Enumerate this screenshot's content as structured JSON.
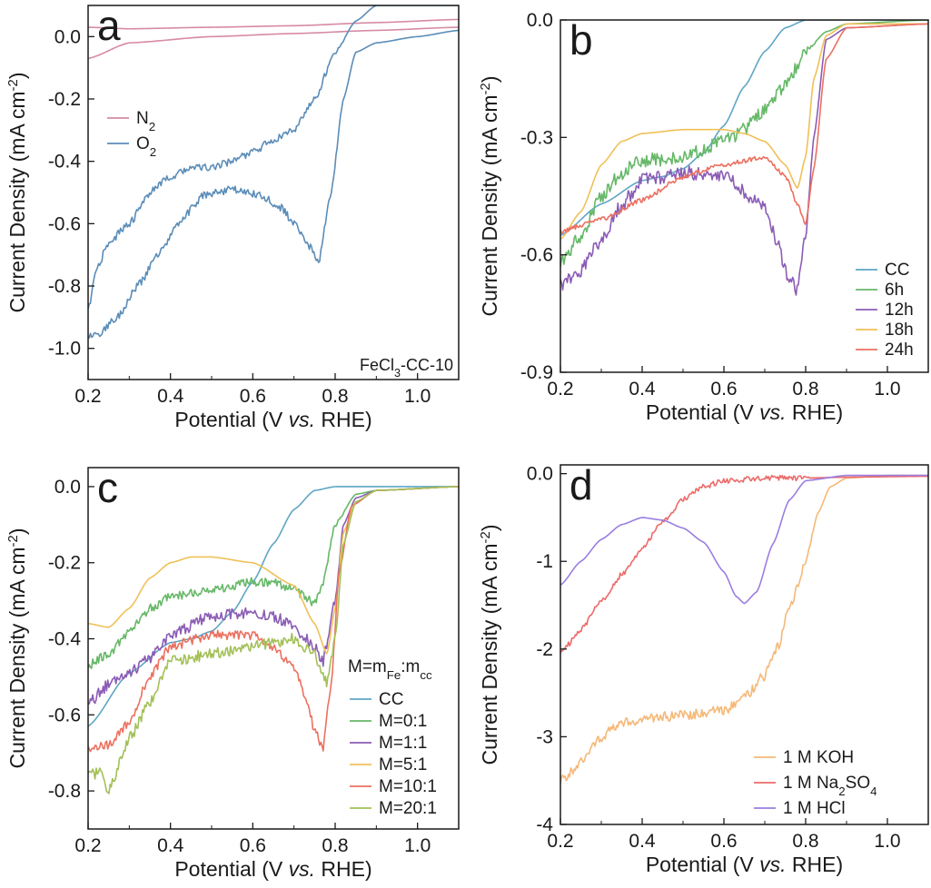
{
  "figure": {
    "panels": [
      {
        "id": "a",
        "letter": "a",
        "note": "FeCl3-CC-10",
        "legend_title": ""
      },
      {
        "id": "b",
        "letter": "b",
        "note": "",
        "legend_title": ""
      },
      {
        "id": "c",
        "letter": "c",
        "note": "",
        "legend_title": "M=mFe:mcc"
      },
      {
        "id": "d",
        "letter": "d",
        "note": "",
        "legend_title": ""
      }
    ]
  },
  "chart_data": [
    {
      "panel": "a",
      "type": "line",
      "xlabel": "Potential (V vs. RHE)",
      "ylabel": "Current Density (mA cm-2)",
      "xlim": [
        0.2,
        1.1
      ],
      "ylim": [
        -1.1,
        0.1
      ],
      "xticks": [
        "0.2",
        "0.4",
        "0.6",
        "0.8",
        "1.0"
      ],
      "yticks": [
        "0.0",
        "-0.2",
        "-0.4",
        "-0.6",
        "-0.8",
        "-1.0"
      ],
      "ytick_values": [
        0.0,
        -0.2,
        -0.4,
        -0.6,
        -0.8,
        -1.0
      ],
      "legend": "left",
      "series": [
        {
          "name": "N2",
          "color": "#d68aa3",
          "noise": 0,
          "x": [
            0.2,
            0.3,
            0.5,
            0.7,
            0.9,
            1.1
          ],
          "y": [
            -0.07,
            -0.02,
            0.0,
            0.01,
            0.02,
            0.03
          ]
        },
        {
          "name": "N2",
          "color": "#d68aa3",
          "noise": 0,
          "hide_legend": true,
          "x": [
            0.2,
            0.3,
            0.5,
            0.7,
            0.9,
            1.1
          ],
          "y": [
            0.03,
            0.025,
            0.03,
            0.035,
            0.045,
            0.055
          ]
        },
        {
          "name": "O2",
          "color": "#5b8db8",
          "noise": 0.012,
          "x": [
            0.2,
            0.23,
            0.27,
            0.32,
            0.38,
            0.43,
            0.48,
            0.55,
            0.62,
            0.67,
            0.7,
            0.73,
            0.76,
            0.79,
            0.82,
            0.85,
            0.9,
            1.0,
            1.1
          ],
          "y": [
            -0.96,
            -0.95,
            -0.9,
            -0.8,
            -0.68,
            -0.58,
            -0.51,
            -0.49,
            -0.51,
            -0.55,
            -0.6,
            -0.66,
            -0.72,
            -0.5,
            -0.2,
            -0.05,
            -0.02,
            0.0,
            0.02
          ]
        },
        {
          "name": "O2",
          "color": "#5b8db8",
          "noise": 0.012,
          "hide_legend": true,
          "x": [
            0.2,
            0.22,
            0.25,
            0.3,
            0.35,
            0.4,
            0.45,
            0.5,
            0.55,
            0.6,
            0.65,
            0.7,
            0.75,
            0.8,
            0.85,
            0.9,
            1.1
          ],
          "y": [
            -0.88,
            -0.75,
            -0.66,
            -0.6,
            -0.5,
            -0.45,
            -0.42,
            -0.42,
            -0.4,
            -0.37,
            -0.33,
            -0.3,
            -0.2,
            -0.05,
            0.05,
            0.1,
            0.1
          ]
        }
      ]
    },
    {
      "panel": "b",
      "type": "line",
      "xlabel": "Potential (V vs. RHE)",
      "ylabel": "Current Density (mA cm-2)",
      "xlim": [
        0.2,
        1.1
      ],
      "ylim": [
        -0.9,
        0.0
      ],
      "xticks": [
        "0.2",
        "0.4",
        "0.6",
        "0.8",
        "1.0"
      ],
      "yticks": [
        "0.0",
        "-0.3",
        "-0.6",
        "-0.9"
      ],
      "ytick_values": [
        0.0,
        -0.3,
        -0.6,
        -0.9
      ],
      "legend": "bottom-right",
      "series": [
        {
          "name": "CC",
          "color": "#5fa6c4",
          "noise": 0,
          "x": [
            0.2,
            0.3,
            0.4,
            0.45,
            0.5,
            0.55,
            0.6,
            0.65,
            0.7,
            0.75,
            0.8,
            0.9,
            1.1
          ],
          "y": [
            -0.55,
            -0.47,
            -0.41,
            -0.4,
            -0.38,
            -0.34,
            -0.27,
            -0.17,
            -0.08,
            -0.02,
            0.0,
            0.0,
            0.0
          ]
        },
        {
          "name": "6h",
          "color": "#66b868",
          "noise": 0.018,
          "x": [
            0.2,
            0.25,
            0.3,
            0.35,
            0.4,
            0.5,
            0.6,
            0.65,
            0.7,
            0.75,
            0.8,
            0.85,
            0.9,
            1.1
          ],
          "y": [
            -0.62,
            -0.55,
            -0.45,
            -0.39,
            -0.36,
            -0.35,
            -0.31,
            -0.28,
            -0.23,
            -0.17,
            -0.08,
            -0.03,
            -0.01,
            0.0
          ]
        },
        {
          "name": "12h",
          "color": "#8b5cb5",
          "noise": 0.018,
          "x": [
            0.2,
            0.25,
            0.3,
            0.35,
            0.4,
            0.5,
            0.6,
            0.7,
            0.73,
            0.76,
            0.78,
            0.8,
            0.82,
            0.85,
            0.9,
            1.1
          ],
          "y": [
            -0.68,
            -0.64,
            -0.56,
            -0.47,
            -0.41,
            -0.39,
            -0.4,
            -0.48,
            -0.57,
            -0.66,
            -0.69,
            -0.55,
            -0.3,
            -0.05,
            -0.02,
            -0.01
          ]
        },
        {
          "name": "18h",
          "color": "#f0c058",
          "noise": 0,
          "x": [
            0.2,
            0.25,
            0.3,
            0.35,
            0.4,
            0.5,
            0.6,
            0.65,
            0.7,
            0.75,
            0.78,
            0.8,
            0.82,
            0.85,
            0.9,
            1.1
          ],
          "y": [
            -0.56,
            -0.49,
            -0.37,
            -0.31,
            -0.29,
            -0.28,
            -0.28,
            -0.29,
            -0.31,
            -0.37,
            -0.43,
            -0.35,
            -0.15,
            -0.04,
            -0.01,
            -0.01
          ]
        },
        {
          "name": "24h",
          "color": "#ec7060",
          "noise": 0.006,
          "x": [
            0.2,
            0.3,
            0.4,
            0.5,
            0.6,
            0.65,
            0.7,
            0.75,
            0.78,
            0.8,
            0.82,
            0.85,
            0.9,
            1.1
          ],
          "y": [
            -0.54,
            -0.51,
            -0.46,
            -0.4,
            -0.37,
            -0.36,
            -0.35,
            -0.4,
            -0.47,
            -0.52,
            -0.38,
            -0.1,
            -0.02,
            -0.01
          ]
        }
      ]
    },
    {
      "panel": "c",
      "type": "line",
      "xlabel": "Potential (V vs. RHE)",
      "ylabel": "Current Density (mA cm-2)",
      "xlim": [
        0.2,
        1.1
      ],
      "ylim": [
        -0.9,
        0.05
      ],
      "xticks": [
        "0.2",
        "0.4",
        "0.6",
        "0.8",
        "1.0"
      ],
      "yticks": [
        "0.0",
        "-0.2",
        "-0.4",
        "-0.6",
        "-0.8"
      ],
      "ytick_values": [
        0.0,
        -0.2,
        -0.4,
        -0.6,
        -0.8
      ],
      "legend": "bottom-right",
      "series": [
        {
          "name": "CC",
          "color": "#5fa6c4",
          "noise": 0,
          "x": [
            0.2,
            0.3,
            0.4,
            0.45,
            0.5,
            0.55,
            0.6,
            0.65,
            0.7,
            0.75,
            0.8,
            0.9,
            1.1
          ],
          "y": [
            -0.63,
            -0.49,
            -0.41,
            -0.4,
            -0.38,
            -0.33,
            -0.25,
            -0.15,
            -0.06,
            -0.01,
            0.0,
            0.0,
            0.0
          ]
        },
        {
          "name": "M=0:1",
          "color": "#66b868",
          "noise": 0.012,
          "x": [
            0.2,
            0.25,
            0.3,
            0.35,
            0.4,
            0.5,
            0.6,
            0.65,
            0.7,
            0.73,
            0.75,
            0.77,
            0.8,
            0.85,
            0.9,
            1.1
          ],
          "y": [
            -0.47,
            -0.44,
            -0.38,
            -0.32,
            -0.29,
            -0.27,
            -0.25,
            -0.25,
            -0.27,
            -0.29,
            -0.31,
            -0.25,
            -0.1,
            -0.02,
            -0.01,
            0.0
          ]
        },
        {
          "name": "M=1:1",
          "color": "#8b5cb5",
          "noise": 0.015,
          "x": [
            0.2,
            0.25,
            0.3,
            0.35,
            0.4,
            0.5,
            0.6,
            0.65,
            0.7,
            0.75,
            0.77,
            0.8,
            0.82,
            0.85,
            0.9,
            1.1
          ],
          "y": [
            -0.57,
            -0.52,
            -0.49,
            -0.45,
            -0.39,
            -0.34,
            -0.33,
            -0.34,
            -0.37,
            -0.42,
            -0.46,
            -0.3,
            -0.1,
            -0.03,
            -0.01,
            0.0
          ]
        },
        {
          "name": "M=5:1",
          "color": "#f0c058",
          "noise": 0,
          "x": [
            0.2,
            0.25,
            0.3,
            0.35,
            0.4,
            0.45,
            0.5,
            0.6,
            0.7,
            0.75,
            0.78,
            0.8,
            0.82,
            0.85,
            0.9,
            1.1
          ],
          "y": [
            -0.36,
            -0.37,
            -0.32,
            -0.24,
            -0.2,
            -0.185,
            -0.185,
            -0.2,
            -0.26,
            -0.36,
            -0.44,
            -0.32,
            -0.12,
            -0.04,
            -0.01,
            0.0
          ]
        },
        {
          "name": "M=10:1",
          "color": "#ec7060",
          "noise": 0.012,
          "x": [
            0.2,
            0.25,
            0.3,
            0.35,
            0.4,
            0.5,
            0.6,
            0.65,
            0.7,
            0.73,
            0.75,
            0.77,
            0.79,
            0.81,
            0.84,
            0.9,
            1.1
          ],
          "y": [
            -0.69,
            -0.68,
            -0.62,
            -0.5,
            -0.42,
            -0.39,
            -0.39,
            -0.42,
            -0.48,
            -0.56,
            -0.64,
            -0.69,
            -0.52,
            -0.22,
            -0.05,
            -0.01,
            0.0
          ]
        },
        {
          "name": "M=20:1",
          "color": "#a3c057",
          "noise": 0.015,
          "x": [
            0.2,
            0.23,
            0.25,
            0.3,
            0.35,
            0.4,
            0.5,
            0.6,
            0.7,
            0.75,
            0.78,
            0.8,
            0.82,
            0.85,
            0.9,
            1.1
          ],
          "y": [
            -0.76,
            -0.75,
            -0.8,
            -0.66,
            -0.57,
            -0.46,
            -0.44,
            -0.42,
            -0.4,
            -0.44,
            -0.52,
            -0.4,
            -0.15,
            -0.04,
            -0.01,
            0.0
          ]
        }
      ]
    },
    {
      "panel": "d",
      "type": "line",
      "xlabel": "Potential (V vs. RHE)",
      "ylabel": "Current Density (mA cm-2)",
      "xlim": [
        0.2,
        1.1
      ],
      "ylim": [
        -4.0,
        0.1
      ],
      "xticks": [
        "0.2",
        "0.4",
        "0.6",
        "0.8",
        "1.0"
      ],
      "yticks": [
        "0.0",
        "-1",
        "-2",
        "-3",
        "-4"
      ],
      "ytick_values": [
        0.0,
        -1.0,
        -2.0,
        -3.0,
        -4.0
      ],
      "legend": "bottom-right",
      "series": [
        {
          "name": "1 M  KOH",
          "color": "#f5b878",
          "noise": 0.06,
          "x": [
            0.2,
            0.25,
            0.3,
            0.35,
            0.4,
            0.5,
            0.6,
            0.65,
            0.7,
            0.73,
            0.76,
            0.8,
            0.83,
            0.86,
            0.9,
            1.0,
            1.1
          ],
          "y": [
            -3.5,
            -3.3,
            -3.0,
            -2.85,
            -2.8,
            -2.75,
            -2.7,
            -2.55,
            -2.3,
            -2.0,
            -1.55,
            -1.0,
            -0.45,
            -0.15,
            -0.05,
            -0.02,
            -0.02
          ]
        },
        {
          "name": "1 M  Na2SO4",
          "color": "#ec6a6a",
          "noise": 0.03,
          "x": [
            0.2,
            0.25,
            0.3,
            0.35,
            0.4,
            0.45,
            0.5,
            0.55,
            0.6,
            0.7,
            0.8,
            0.9,
            1.1
          ],
          "y": [
            -2.05,
            -1.78,
            -1.45,
            -1.15,
            -0.85,
            -0.55,
            -0.3,
            -0.15,
            -0.08,
            -0.05,
            -0.05,
            -0.04,
            -0.03
          ]
        },
        {
          "name": "1 M  HCl",
          "color": "#9a7ee0",
          "noise": 0,
          "x": [
            0.2,
            0.25,
            0.3,
            0.35,
            0.4,
            0.45,
            0.5,
            0.55,
            0.6,
            0.63,
            0.65,
            0.68,
            0.72,
            0.76,
            0.8,
            0.9,
            1.1
          ],
          "y": [
            -1.27,
            -1.0,
            -0.75,
            -0.58,
            -0.5,
            -0.53,
            -0.62,
            -0.78,
            -1.12,
            -1.4,
            -1.48,
            -1.35,
            -0.8,
            -0.3,
            -0.08,
            -0.02,
            -0.02
          ]
        }
      ]
    }
  ]
}
